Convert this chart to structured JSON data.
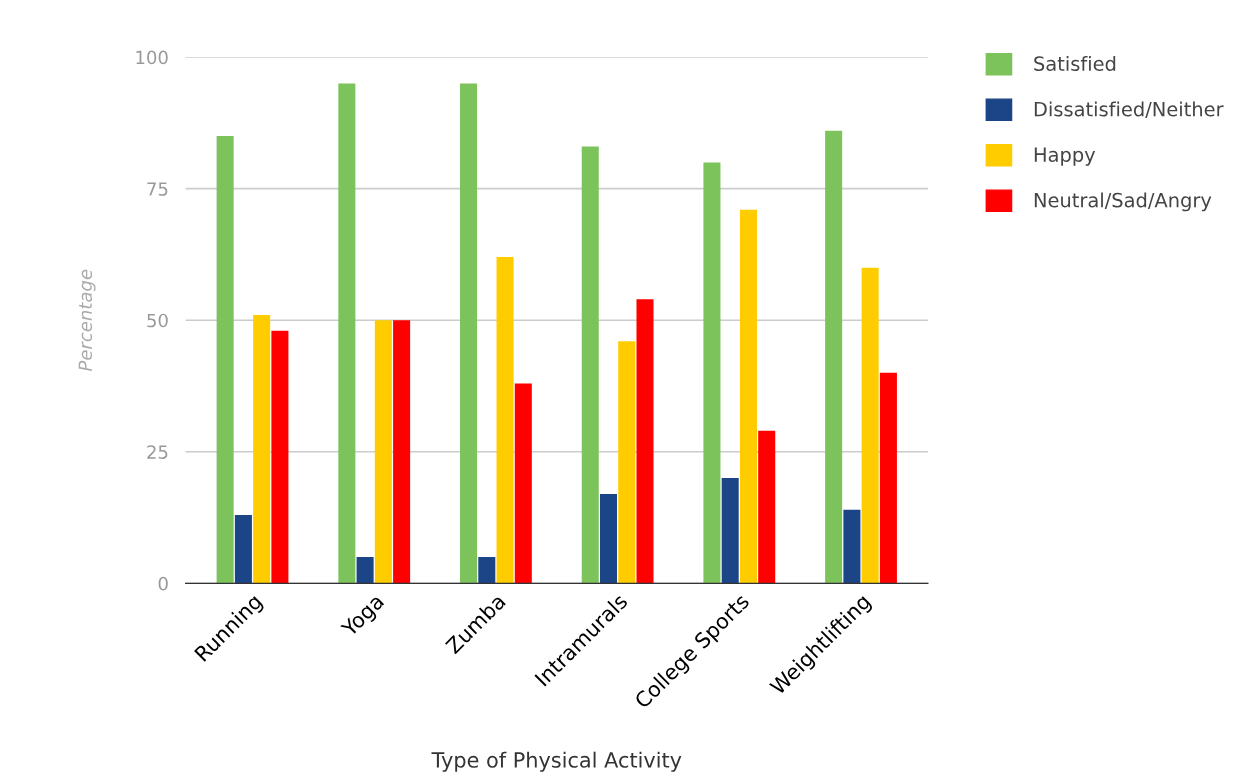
{
  "chart_data": {
    "type": "bar",
    "xlabel": "Type of Physical Activity",
    "ylabel": "Percentage",
    "categories": [
      "Running",
      "Yoga",
      "Zumba",
      "Intramurals",
      "College Sports",
      "Weightlifting"
    ],
    "series": [
      {
        "name": "Satisfied",
        "color": "#7cc35b",
        "values": [
          85,
          95,
          95,
          83,
          80,
          86
        ]
      },
      {
        "name": "Dissatisfied/Neither",
        "color": "#1c4587",
        "values": [
          13,
          5,
          5,
          17,
          20,
          14
        ]
      },
      {
        "name": "Happy",
        "color": "#ffcc00",
        "values": [
          51,
          50,
          62,
          46,
          71,
          60
        ]
      },
      {
        "name": "Neutral/Sad/Angry",
        "color": "#ff0000",
        "values": [
          48,
          50,
          38,
          54,
          29,
          40
        ]
      }
    ],
    "ylim": [
      0,
      100
    ],
    "yticks": [
      0,
      25,
      50,
      75,
      100
    ],
    "grid": "y",
    "legend": "top right"
  }
}
